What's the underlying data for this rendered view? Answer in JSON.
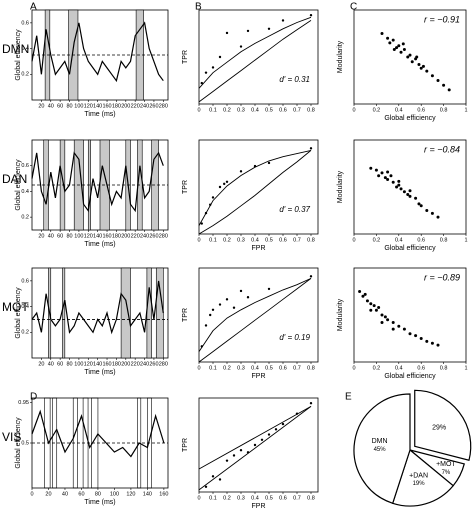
{
  "panel_labels": [
    "A",
    "B",
    "C",
    "D",
    "E"
  ],
  "row_labels": [
    "DMN",
    "DAN",
    "MOT",
    "VIS"
  ],
  "chart_data": [
    {
      "type": "line",
      "xlabel": "Time (ms)",
      "ylabel": "Global efficiency",
      "x": [
        0,
        10,
        20,
        30,
        40,
        50,
        60,
        70,
        80,
        90,
        100,
        110,
        120,
        130,
        140,
        150,
        160,
        170,
        180,
        190,
        200,
        210,
        220,
        230,
        240,
        250,
        260,
        270,
        280
      ],
      "values": [
        0.3,
        0.5,
        0.2,
        0.55,
        0.35,
        0.2,
        0.25,
        0.3,
        0.2,
        0.45,
        0.6,
        0.4,
        0.3,
        0.25,
        0.2,
        0.3,
        0.25,
        0.2,
        0.15,
        0.3,
        0.25,
        0.3,
        0.5,
        0.55,
        0.6,
        0.4,
        0.3,
        0.2,
        0.15
      ],
      "xlim": [
        0,
        290
      ],
      "ylim": [
        0,
        0.7
      ],
      "xticks": [
        20,
        40,
        60,
        80,
        100,
        120,
        140,
        160,
        180,
        200,
        220,
        240,
        260,
        280
      ],
      "yticks": [
        0.2,
        0.4,
        0.6
      ],
      "threshold": 0.35,
      "intervals": [
        [
          28,
          38
        ],
        [
          78,
          98
        ],
        [
          222,
          238
        ]
      ],
      "interval_style": "filled"
    },
    {
      "type": "scatter",
      "ylabel": "TPR",
      "annotation": "d' = 0.31",
      "x": [
        0.02,
        0.05,
        0.1,
        0.15,
        0.2,
        0.3,
        0.35,
        0.5,
        0.6,
        0.8
      ],
      "values": [
        0.2,
        0.3,
        0.35,
        0.45,
        0.68,
        0.55,
        0.7,
        0.72,
        0.8,
        0.85
      ],
      "curves": [
        {
          "x": [
            0,
            0.1,
            0.2,
            0.3,
            0.4,
            0.5,
            0.6,
            0.7,
            0.8
          ],
          "values": [
            0.15,
            0.3,
            0.4,
            0.5,
            0.58,
            0.65,
            0.72,
            0.78,
            0.83
          ]
        },
        {
          "x": [
            0,
            0.1,
            0.2,
            0.3,
            0.4,
            0.5,
            0.6,
            0.7,
            0.8
          ],
          "values": [
            0.02,
            0.12,
            0.22,
            0.32,
            0.42,
            0.52,
            0.62,
            0.71,
            0.8
          ]
        }
      ],
      "xlim": [
        0,
        0.85
      ],
      "ylim": [
        0,
        0.9
      ],
      "xticks": [
        0,
        0.1,
        0.2,
        0.3,
        0.4,
        0.5,
        0.6,
        0.7,
        0.8
      ]
    },
    {
      "type": "scatter",
      "xlabel": "Global efficiency",
      "ylabel": "Modularity",
      "annotation": "r = −0.91",
      "x": [
        0.25,
        0.3,
        0.32,
        0.35,
        0.38,
        0.4,
        0.42,
        0.45,
        0.48,
        0.5,
        0.52,
        0.55,
        0.58,
        0.6,
        0.62,
        0.65,
        0.7,
        0.75,
        0.8,
        0.85,
        0.44,
        0.36,
        0.56
      ],
      "values": [
        0.75,
        0.7,
        0.65,
        0.68,
        0.6,
        0.62,
        0.55,
        0.58,
        0.5,
        0.52,
        0.45,
        0.48,
        0.42,
        0.38,
        0.4,
        0.35,
        0.3,
        0.25,
        0.2,
        0.15,
        0.64,
        0.58,
        0.5
      ],
      "xlim": [
        0,
        1
      ],
      "ylim": [
        0,
        1
      ],
      "xticks": [
        0,
        0.2,
        0.4,
        0.6,
        0.8,
        1
      ]
    },
    {
      "type": "line",
      "xlabel": "Time (ms)",
      "ylabel": "Global efficiency",
      "x": [
        0,
        10,
        20,
        30,
        40,
        50,
        60,
        70,
        80,
        90,
        100,
        110,
        120,
        130,
        140,
        150,
        160,
        170,
        180,
        190,
        200,
        210,
        220,
        230,
        240,
        250,
        260,
        270,
        280
      ],
      "values": [
        0.5,
        0.7,
        0.4,
        0.3,
        0.55,
        0.35,
        0.6,
        0.4,
        0.45,
        0.7,
        0.65,
        0.3,
        0.25,
        0.5,
        0.35,
        0.6,
        0.45,
        0.3,
        0.4,
        0.35,
        0.6,
        0.3,
        0.25,
        0.6,
        0.35,
        0.4,
        0.65,
        0.7,
        0.6
      ],
      "xlim": [
        0,
        290
      ],
      "ylim": [
        0.1,
        0.8
      ],
      "xticks": [
        20,
        40,
        60,
        80,
        100,
        120,
        140,
        160,
        180,
        200,
        220,
        240,
        260,
        280
      ],
      "yticks": [
        0.2,
        0.4,
        0.6
      ],
      "threshold": 0.45,
      "intervals": [
        [
          25,
          35
        ],
        [
          60,
          70
        ],
        [
          90,
          110
        ],
        [
          120,
          125
        ],
        [
          145,
          165
        ],
        [
          200,
          210
        ],
        [
          225,
          235
        ],
        [
          255,
          270
        ]
      ],
      "interval_style": "filled"
    },
    {
      "type": "scatter",
      "xlabel": "FPR",
      "ylabel": "TPR",
      "annotation": "d' = 0.37",
      "x": [
        0.02,
        0.05,
        0.08,
        0.1,
        0.15,
        0.18,
        0.2,
        0.3,
        0.4,
        0.5,
        0.8
      ],
      "values": [
        0.1,
        0.2,
        0.28,
        0.35,
        0.45,
        0.48,
        0.5,
        0.6,
        0.65,
        0.68,
        0.82
      ],
      "curves": [
        {
          "x": [
            0,
            0.1,
            0.2,
            0.3,
            0.4,
            0.5,
            0.6,
            0.7,
            0.8
          ],
          "values": [
            0.08,
            0.32,
            0.46,
            0.56,
            0.64,
            0.7,
            0.74,
            0.77,
            0.8
          ]
        },
        {
          "x": [
            0,
            0.1,
            0.2,
            0.3,
            0.4,
            0.5,
            0.6,
            0.7,
            0.8
          ],
          "values": [
            0,
            0.08,
            0.17,
            0.27,
            0.37,
            0.48,
            0.59,
            0.69,
            0.8
          ]
        }
      ],
      "xlim": [
        0,
        0.85
      ],
      "ylim": [
        0,
        0.9
      ],
      "xticks": [
        0,
        0.1,
        0.2,
        0.3,
        0.4,
        0.5,
        0.6,
        0.7,
        0.8
      ]
    },
    {
      "type": "scatter",
      "xlabel": "Global efficiency",
      "ylabel": "Modularity",
      "annotation": "r = −0.84",
      "x": [
        0.15,
        0.2,
        0.22,
        0.25,
        0.28,
        0.3,
        0.33,
        0.35,
        0.38,
        0.4,
        0.42,
        0.45,
        0.48,
        0.5,
        0.55,
        0.58,
        0.6,
        0.65,
        0.7,
        0.75,
        0.3,
        0.4,
        0.5
      ],
      "values": [
        0.7,
        0.68,
        0.62,
        0.65,
        0.6,
        0.58,
        0.62,
        0.55,
        0.5,
        0.52,
        0.48,
        0.45,
        0.42,
        0.4,
        0.38,
        0.32,
        0.3,
        0.25,
        0.22,
        0.18,
        0.66,
        0.56,
        0.46
      ],
      "xlim": [
        0,
        1
      ],
      "ylim": [
        0,
        1
      ],
      "xticks": [
        0,
        0.2,
        0.4,
        0.6,
        0.8,
        1
      ]
    },
    {
      "type": "line",
      "xlabel": "Time (ms)",
      "ylabel": "Global efficiency",
      "x": [
        0,
        10,
        20,
        30,
        40,
        50,
        60,
        70,
        80,
        90,
        100,
        110,
        120,
        130,
        140,
        150,
        160,
        170,
        180,
        190,
        200,
        210,
        220,
        230,
        240,
        250,
        260,
        270,
        280
      ],
      "values": [
        0.3,
        0.35,
        0.2,
        0.5,
        0.3,
        0.25,
        0.3,
        0.45,
        0.2,
        0.25,
        0.35,
        0.3,
        0.25,
        0.2,
        0.3,
        0.25,
        0.35,
        0.2,
        0.3,
        0.5,
        0.45,
        0.25,
        0.3,
        0.35,
        0.2,
        0.55,
        0.3,
        0.6,
        0.35
      ],
      "xlim": [
        0,
        290
      ],
      "ylim": [
        0,
        0.7
      ],
      "xticks": [
        20,
        40,
        60,
        80,
        100,
        120,
        140,
        160,
        180,
        200,
        220,
        240,
        260,
        280
      ],
      "yticks": [
        0.2,
        0.4,
        0.6
      ],
      "threshold": 0.3,
      "intervals": [
        [
          35,
          40
        ],
        [
          65,
          70
        ],
        [
          190,
          210
        ],
        [
          245,
          255
        ],
        [
          265,
          280
        ]
      ],
      "interval_style": "filled"
    },
    {
      "type": "scatter",
      "xlabel": "FPR",
      "ylabel": "TPR",
      "annotation": "d' = 0.19",
      "x": [
        0.02,
        0.05,
        0.08,
        0.1,
        0.15,
        0.2,
        0.25,
        0.3,
        0.35,
        0.5,
        0.8
      ],
      "values": [
        0.15,
        0.35,
        0.45,
        0.5,
        0.55,
        0.6,
        0.52,
        0.68,
        0.62,
        0.7,
        0.82
      ],
      "curves": [
        {
          "x": [
            0,
            0.1,
            0.2,
            0.3,
            0.4,
            0.5,
            0.6,
            0.7,
            0.8
          ],
          "values": [
            0.1,
            0.3,
            0.42,
            0.5,
            0.57,
            0.63,
            0.69,
            0.74,
            0.8
          ]
        },
        {
          "x": [
            0,
            0.1,
            0.2,
            0.3,
            0.4,
            0.5,
            0.6,
            0.7,
            0.8
          ],
          "values": [
            0,
            0.1,
            0.2,
            0.3,
            0.4,
            0.5,
            0.6,
            0.7,
            0.8
          ]
        }
      ],
      "xlim": [
        0,
        0.85
      ],
      "ylim": [
        0,
        0.9
      ],
      "xticks": [
        0,
        0.1,
        0.2,
        0.3,
        0.4,
        0.5,
        0.6,
        0.7,
        0.8
      ]
    },
    {
      "type": "scatter",
      "xlabel": "Global efficiency",
      "ylabel": "Modularity",
      "annotation": "r = −0.89",
      "x": [
        0.05,
        0.08,
        0.1,
        0.12,
        0.15,
        0.18,
        0.2,
        0.22,
        0.25,
        0.28,
        0.3,
        0.35,
        0.4,
        0.45,
        0.5,
        0.55,
        0.6,
        0.65,
        0.7,
        0.75,
        0.15,
        0.25,
        0.35
      ],
      "values": [
        0.75,
        0.7,
        0.72,
        0.65,
        0.62,
        0.6,
        0.55,
        0.58,
        0.5,
        0.48,
        0.45,
        0.42,
        0.38,
        0.35,
        0.3,
        0.28,
        0.25,
        0.22,
        0.2,
        0.18,
        0.55,
        0.42,
        0.35
      ],
      "xlim": [
        0,
        1
      ],
      "ylim": [
        0,
        1
      ],
      "xticks": [
        0,
        0.2,
        0.4,
        0.6,
        0.8,
        1
      ]
    },
    {
      "type": "line",
      "xlabel": "Time (ms)",
      "ylabel": "Global efficiency",
      "x": [
        0,
        10,
        20,
        30,
        40,
        50,
        60,
        70,
        80,
        90,
        100,
        110,
        120,
        130,
        140,
        150,
        160
      ],
      "values": [
        0.6,
        0.85,
        0.5,
        0.65,
        0.4,
        0.55,
        0.8,
        0.45,
        0.6,
        0.5,
        0.4,
        0.45,
        0.35,
        0.5,
        0.45,
        0.8,
        0.5
      ],
      "xlim": [
        0,
        165
      ],
      "ylim": [
        0,
        1
      ],
      "xticks": [
        0,
        20,
        40,
        60,
        80,
        100,
        120,
        140,
        160
      ],
      "yticks": [
        0.5,
        0.95
      ],
      "threshold": 0.5,
      "intervals": [
        [
          15,
          22
        ],
        [
          25,
          30
        ],
        [
          50,
          55
        ],
        [
          62,
          68
        ],
        [
          72,
          80
        ],
        [
          128,
          132
        ],
        [
          140,
          145
        ]
      ],
      "interval_style": "outline"
    },
    {
      "type": "scatter",
      "xlabel": "FPR",
      "ylabel": "TPR",
      "x": [
        0.05,
        0.1,
        0.15,
        0.2,
        0.25,
        0.3,
        0.35,
        0.4,
        0.45,
        0.5,
        0.55,
        0.6,
        0.7,
        0.8
      ],
      "values": [
        0.05,
        0.15,
        0.12,
        0.3,
        0.35,
        0.4,
        0.38,
        0.45,
        0.5,
        0.55,
        0.6,
        0.65,
        0.75,
        0.85
      ],
      "curves": [
        {
          "x": [
            0,
            0.8
          ],
          "values": [
            0.22,
            0.82
          ]
        },
        {
          "x": [
            0,
            0.8
          ],
          "values": [
            0.02,
            0.82
          ]
        }
      ],
      "xlim": [
        0,
        0.85
      ],
      "ylim": [
        0,
        0.9
      ],
      "xticks": [
        0,
        0.1,
        0.2,
        0.3,
        0.4,
        0.5,
        0.6,
        0.7,
        0.8
      ]
    },
    {
      "type": "pie",
      "categories": [
        null,
        "+MOT",
        "+DAN",
        "DMN"
      ],
      "values": [
        29,
        7,
        19,
        45
      ],
      "value_labels": [
        "29%",
        "7%",
        "19%",
        "45%"
      ],
      "exploded": 0,
      "color": "#ffffff"
    }
  ]
}
